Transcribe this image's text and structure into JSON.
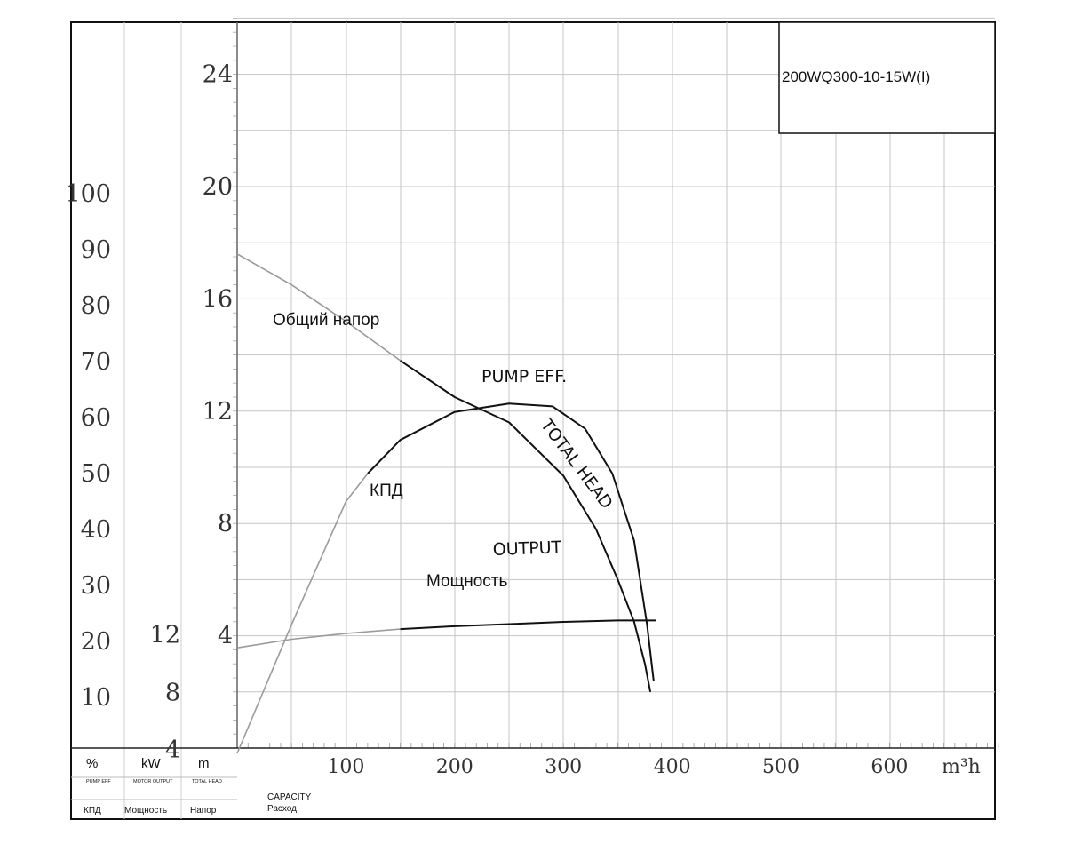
{
  "chart_data": {
    "type": "line",
    "model_label": "200WQ300-10-15W(I)",
    "x_axis": {
      "label_en": "CAPACITY",
      "label_ru": "Расход",
      "unit": "m³h",
      "ticks": [
        "100",
        "200",
        "300",
        "400",
        "500",
        "600"
      ],
      "range": [
        0,
        700
      ]
    },
    "axes": {
      "efficiency": {
        "unit": "%",
        "name_en": "PUMP EFF",
        "name_ru": "КПД",
        "ticks": [
          "10",
          "20",
          "30",
          "40",
          "50",
          "60",
          "70",
          "80",
          "90",
          "100"
        ]
      },
      "power": {
        "unit": "kW",
        "name_en": "MOTOR OUTPUT",
        "name_ru": "Мощность",
        "ticks": [
          "4",
          "8",
          "12"
        ]
      },
      "head": {
        "unit": "m",
        "name_en": "TOTAL HEAD",
        "name_ru": "Напор",
        "ticks": [
          "4",
          "8",
          "12",
          "16",
          "20",
          "24"
        ],
        "range": [
          -1,
          26
        ]
      }
    },
    "series": [
      {
        "name": "TOTAL HEAD",
        "axis": "head",
        "color": "#111111",
        "x": [
          0,
          50,
          100,
          150,
          200,
          250,
          300,
          330,
          350,
          365,
          375,
          380
        ],
        "y": [
          17.6,
          16.5,
          15.2,
          13.8,
          12.5,
          11.6,
          9.7,
          7.8,
          6.0,
          4.5,
          3.0,
          2.0
        ]
      },
      {
        "name": "PUMP EFF.",
        "axis": "efficiency",
        "color": "#111111",
        "x": [
          0,
          50,
          100,
          120,
          150,
          200,
          250,
          290,
          320,
          345,
          365,
          377,
          383
        ],
        "y": [
          0,
          23,
          45,
          50,
          56,
          61,
          62.5,
          62,
          58,
          50,
          38,
          23,
          13
        ]
      },
      {
        "name": "OUTPUT",
        "axis": "power",
        "color": "#111111",
        "x": [
          0,
          50,
          100,
          150,
          200,
          250,
          300,
          350,
          385
        ],
        "y": [
          11.1,
          11.7,
          12.1,
          12.4,
          12.6,
          12.75,
          12.9,
          13.0,
          13.0
        ]
      }
    ],
    "curve_labels": {
      "head_ru": "Общий напор",
      "eff_en": "PUMP EFF.",
      "head_en": "TOTAL HEAD",
      "eff_ru": "КПД",
      "power_en": "OUTPUT",
      "power_ru": "Мощность"
    },
    "grid": true,
    "legend": "none"
  }
}
